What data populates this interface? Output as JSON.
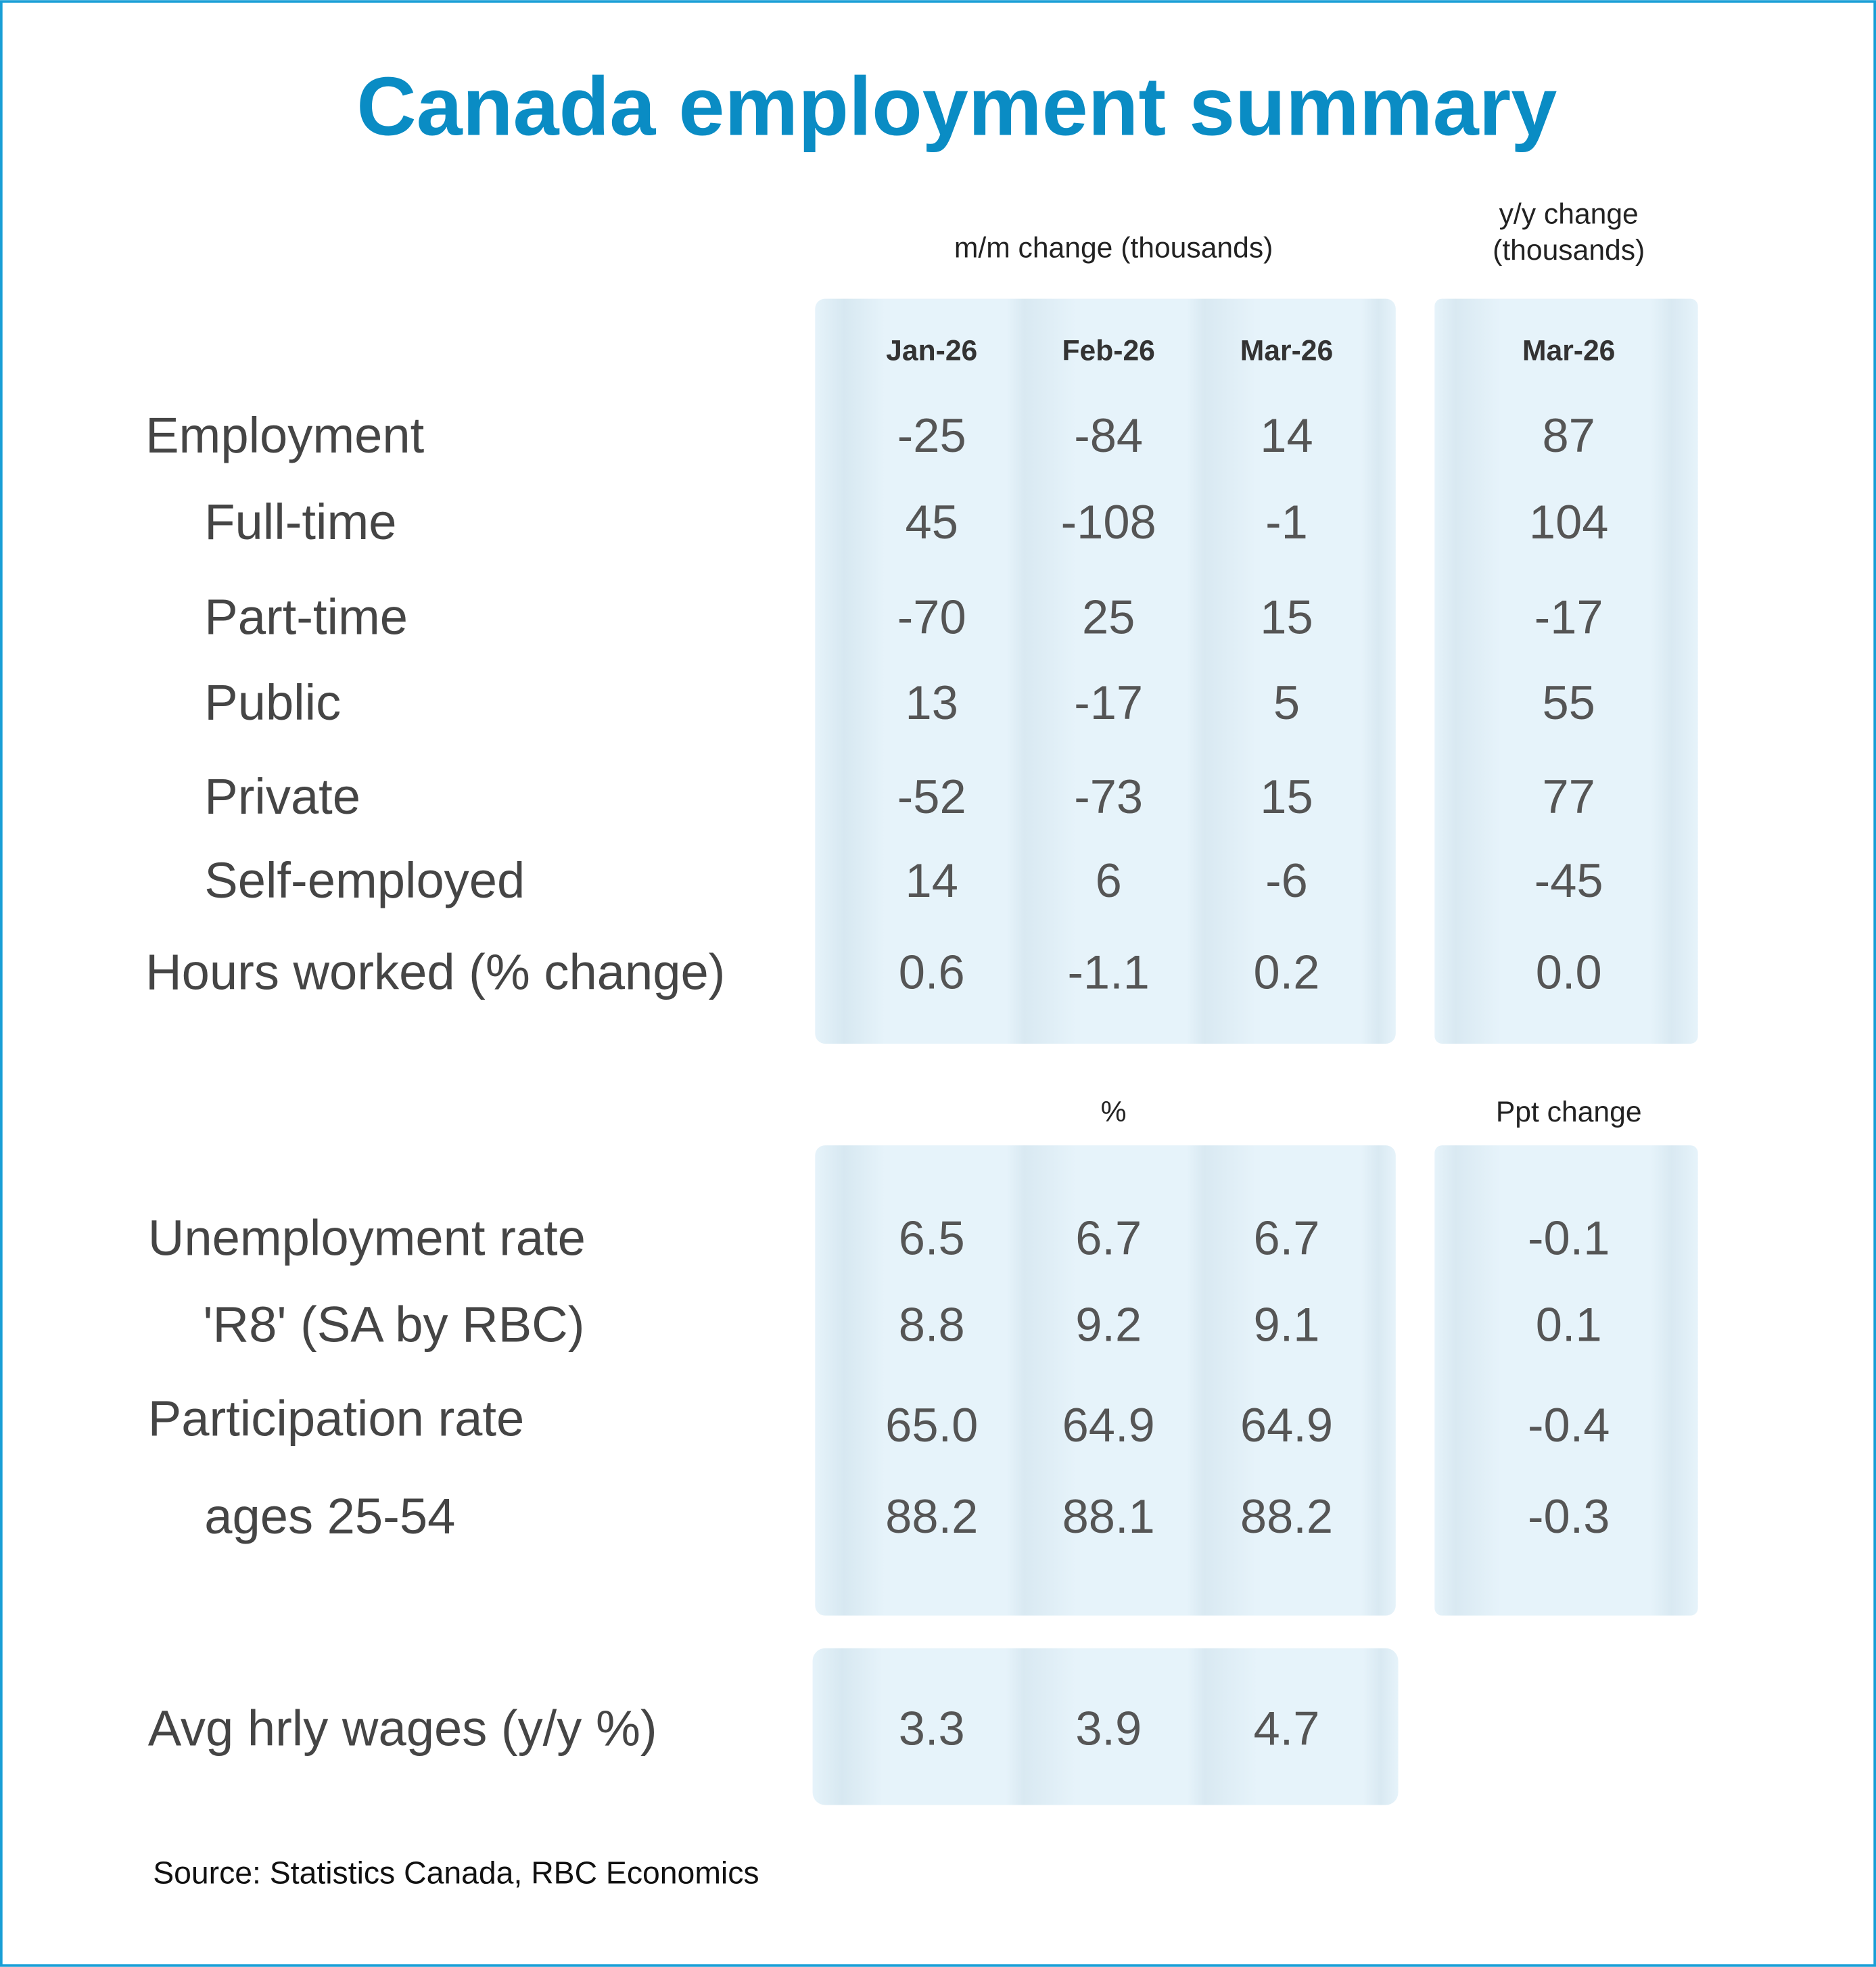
{
  "title": "Canada employment summary",
  "sections": [
    {
      "mm_header": "m/m change (thousands)",
      "yy_header": [
        "y/y change",
        "(thousands)"
      ],
      "columns": [
        "Jan-26",
        "Feb-26",
        "Mar-26",
        "Mar-26"
      ],
      "rows": [
        {
          "label": "Employment",
          "values": [
            "-25",
            "-84",
            "14",
            "87"
          ]
        },
        {
          "label": "Full-time",
          "values": [
            "45",
            "-108",
            "-1",
            "104"
          ]
        },
        {
          "label": "Part-time",
          "values": [
            "-70",
            "25",
            "15",
            "-17"
          ]
        },
        {
          "label": "Public",
          "values": [
            "13",
            "-17",
            "5",
            "55"
          ]
        },
        {
          "label": "Private",
          "values": [
            "-52",
            "-73",
            "15",
            "77"
          ]
        },
        {
          "label": "Self-employed",
          "values": [
            "14",
            "6",
            "-6",
            "-45"
          ]
        },
        {
          "label": "Hours worked (% change)",
          "values": [
            "0.6",
            "-1.1",
            "0.2",
            "0.0"
          ]
        }
      ]
    },
    {
      "mm_header": "%",
      "yy_header": [
        "Ppt change"
      ],
      "rows": [
        {
          "label": "Unemployment rate",
          "values": [
            "6.5",
            "6.7",
            "6.7",
            "-0.1"
          ]
        },
        {
          "label": "'R8' (SA by RBC)",
          "values": [
            "8.8",
            "9.2",
            "9.1",
            "0.1"
          ]
        },
        {
          "label": "Participation rate",
          "values": [
            "65.0",
            "64.9",
            "64.9",
            "-0.4"
          ]
        },
        {
          "label": "ages 25-54",
          "values": [
            "88.2",
            "88.1",
            "88.2",
            "-0.3"
          ]
        }
      ]
    },
    {
      "rows": [
        {
          "label": "Avg hrly wages (y/y %)",
          "values": [
            "3.3",
            "3.9",
            "4.7"
          ]
        }
      ]
    }
  ],
  "source": "Source:  Statistics Canada, RBC Economics"
}
